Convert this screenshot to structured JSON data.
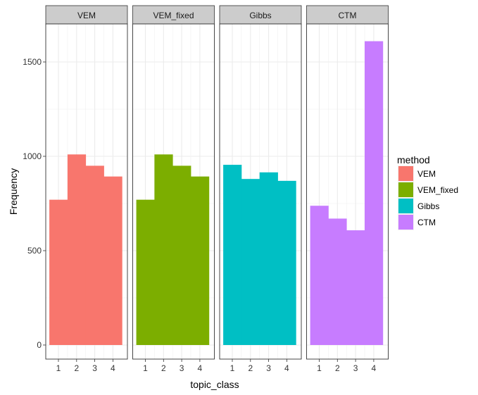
{
  "chart_data": {
    "type": "bar",
    "facet_by": "method",
    "xlabel": "topic_class",
    "ylabel": "Frequency",
    "categories": [
      "1",
      "2",
      "3",
      "4"
    ],
    "y_ticks": [
      "0",
      "500",
      "1000",
      "1500"
    ],
    "ylim": [
      0,
      1700
    ],
    "grid": true,
    "legend": {
      "title": "method",
      "position": "right",
      "entries": [
        "VEM",
        "VEM_fixed",
        "Gibbs",
        "CTM"
      ]
    },
    "series": [
      {
        "name": "VEM",
        "color": "#F8766D",
        "values": [
          770,
          1010,
          950,
          893
        ]
      },
      {
        "name": "VEM_fixed",
        "color": "#7CAE00",
        "values": [
          770,
          1010,
          950,
          893
        ]
      },
      {
        "name": "Gibbs",
        "color": "#00BFC4",
        "values": [
          955,
          880,
          915,
          870
        ]
      },
      {
        "name": "CTM",
        "color": "#C77CFF",
        "values": [
          738,
          670,
          608,
          1610
        ]
      }
    ]
  }
}
